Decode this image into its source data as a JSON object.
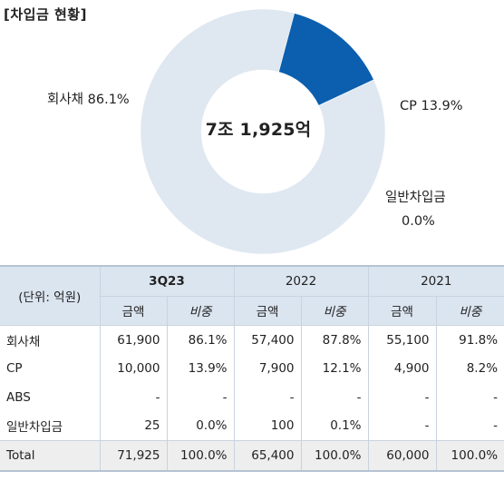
{
  "section_title": "[차입금 현황]",
  "chart_data": {
    "type": "pie",
    "subtype": "donut",
    "center_label": "7조 1,925억",
    "slices": [
      {
        "name": "회사채",
        "share": 86.1,
        "value": 61900,
        "color": "#dfe8f1",
        "label": "회사채 86.1%"
      },
      {
        "name": "CP",
        "share": 13.9,
        "value": 10000,
        "color": "#0b5fae",
        "label": "CP 13.9%"
      },
      {
        "name": "일반차입금",
        "share": 0.0,
        "value": 25,
        "color": "#0b5fae",
        "label_line1": "일반차입금",
        "label_line2": "0.0%"
      }
    ]
  },
  "table": {
    "unit_header": "(단위: 억원)",
    "periods": [
      "3Q23",
      "2022",
      "2021"
    ],
    "sub_headers": {
      "amount": "금액",
      "ratio": "비중"
    },
    "rows": [
      {
        "label": "회사채",
        "cells": [
          "61,900",
          "86.1%",
          "57,400",
          "87.8%",
          "55,100",
          "91.8%"
        ]
      },
      {
        "label": "CP",
        "cells": [
          "10,000",
          "13.9%",
          "7,900",
          "12.1%",
          "4,900",
          "8.2%"
        ]
      },
      {
        "label": "ABS",
        "cells": [
          "-",
          "-",
          "-",
          "-",
          "-",
          "-"
        ]
      },
      {
        "label": "일반차입금",
        "cells": [
          "25",
          "0.0%",
          "100",
          "0.1%",
          "-",
          "-"
        ]
      }
    ],
    "total": {
      "label": "Total",
      "cells": [
        "71,925",
        "100.0%",
        "65,400",
        "100.0%",
        "60,000",
        "100.0%"
      ]
    }
  }
}
